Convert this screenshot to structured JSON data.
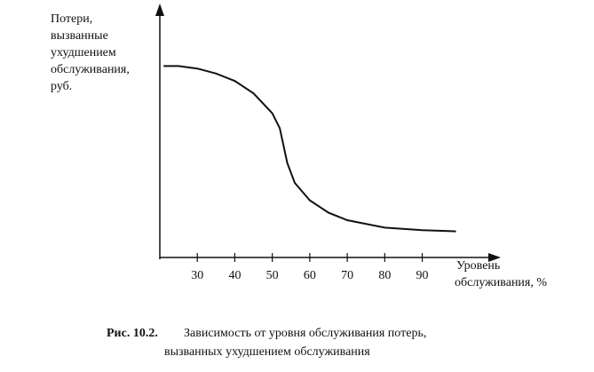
{
  "chart_data": {
    "type": "line",
    "y_label": [
      "Потери,",
      "вызванные",
      "ухудшением",
      "обслуживания,",
      "руб."
    ],
    "x_label": [
      "Уровень",
      "обслуживания, %"
    ],
    "caption": {
      "number": "Рис. 10.2.",
      "lines": [
        "Зависимость от уровня обслуживания потерь,",
        "вызванных ухудшением обслуживания"
      ]
    },
    "x": [
      21,
      25,
      30,
      35,
      40,
      45,
      50,
      52,
      53,
      54,
      56,
      60,
      65,
      70,
      80,
      90,
      99
    ],
    "values": [
      77,
      77,
      76,
      74,
      71,
      66,
      58,
      52,
      45,
      38,
      30,
      23,
      18,
      15,
      12,
      11,
      10.5
    ],
    "color": "#111111",
    "xlim": [
      20,
      110
    ],
    "xticks": [
      30,
      40,
      50,
      60,
      70,
      80,
      90
    ],
    "ylim": [
      0,
      100
    ]
  }
}
